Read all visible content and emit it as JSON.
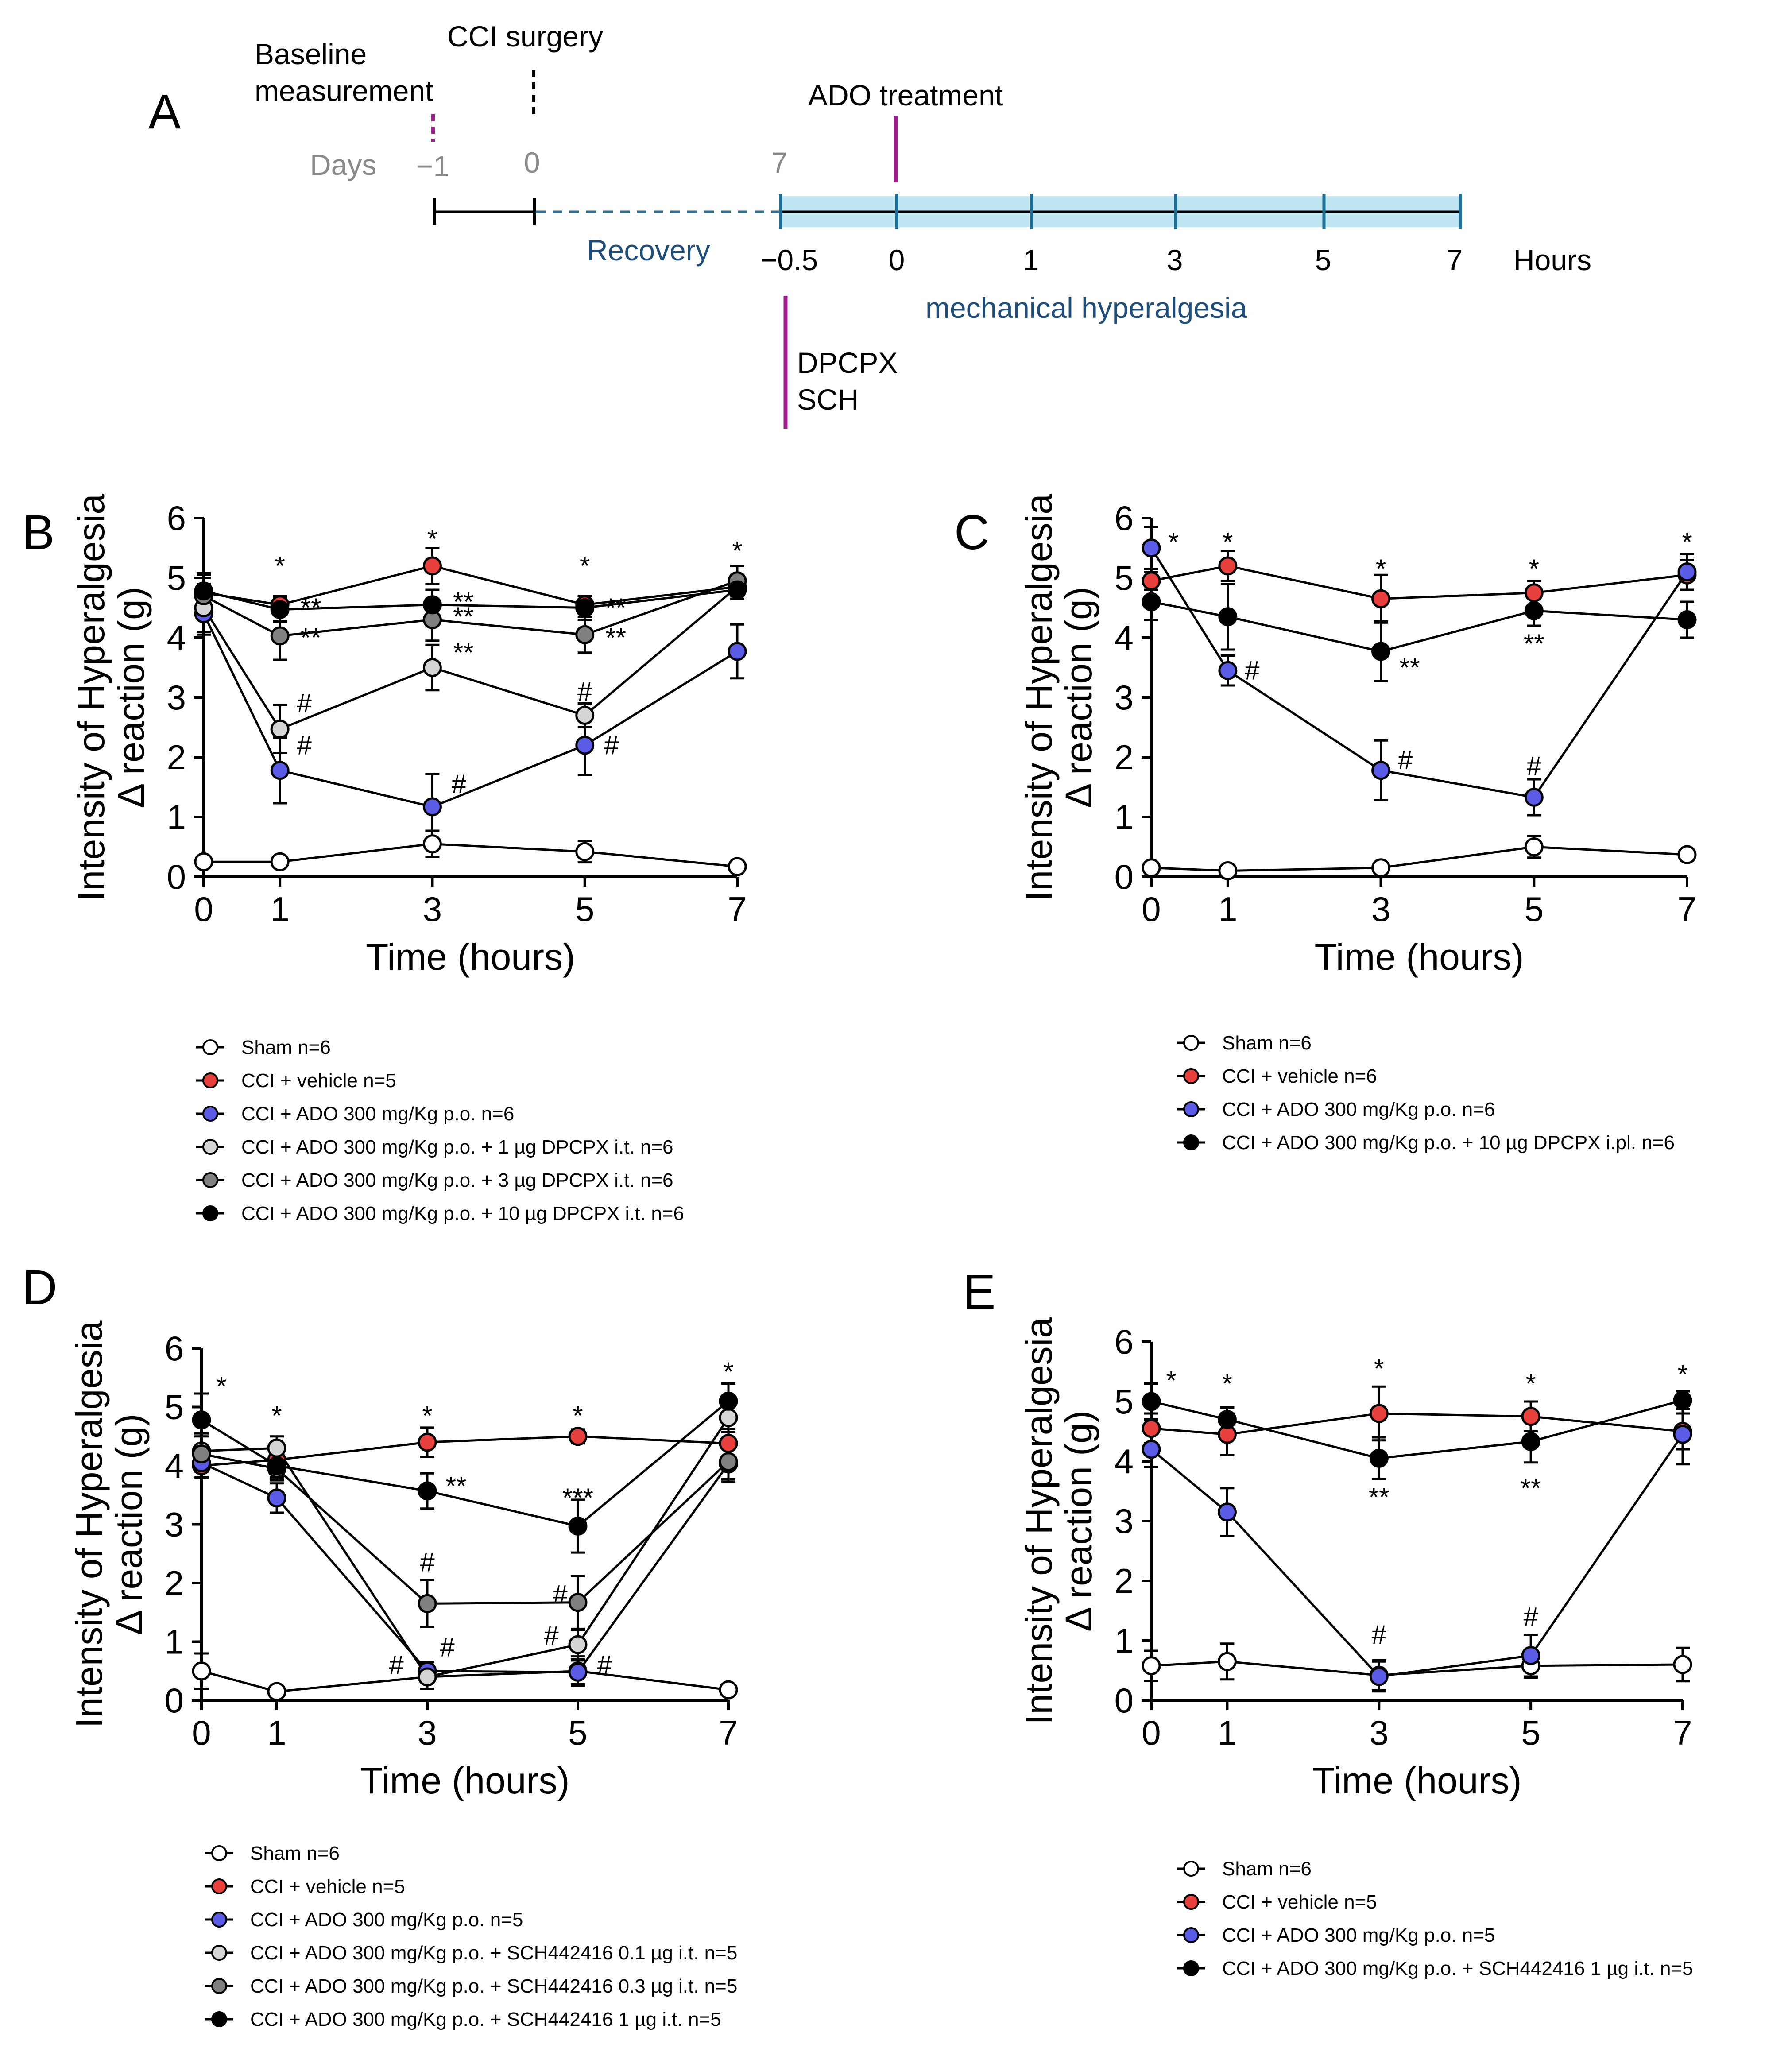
{
  "schematic": {
    "letter": "A",
    "baseline_label_1": "Baseline",
    "baseline_label_2": "measurement",
    "cci_label": "CCI surgery",
    "ado_label": "ADO treatment",
    "days_label": "Days",
    "day_minus1": "−1",
    "day_0": "0",
    "day_7": "7",
    "recovery_label": "Recovery",
    "hours": [
      "−0.5",
      "0",
      "1",
      "3",
      "5",
      "7"
    ],
    "hours_label": "Hours",
    "mech_label": "mechanical hyperalgesia",
    "dpcpx_label": "DPCPX",
    "sch_label": "SCH",
    "colors": {
      "magenta": "#a0208f",
      "blue_text": "#1e4e79",
      "dash_blue": "#2f6f8f",
      "band": "#bfe6f2",
      "grey": "#8a8a8a"
    }
  },
  "chart_data": [
    {
      "panel": "B",
      "type": "line",
      "x": [
        0,
        1,
        3,
        5,
        7
      ],
      "xticks": [
        "0",
        "1",
        "3",
        "5",
        "7"
      ],
      "yticks": [
        "0",
        "1",
        "2",
        "3",
        "4",
        "5",
        "6"
      ],
      "ylim": [
        0,
        6
      ],
      "xlabel": "Time (hours)",
      "ylabel_1": "Intensity of Hyperalgesia",
      "ylabel_2": "Δ reaction (g)",
      "series": [
        {
          "name": "Sham n=6",
          "color": "#ffffff",
          "values": [
            0.25,
            0.25,
            0.55,
            0.42,
            0.17
          ],
          "errors": [
            0.08,
            0.05,
            0.22,
            0.18,
            0.05
          ]
        },
        {
          "name": "CCI + vehicle n=5",
          "color": "#e8403c",
          "values": [
            4.75,
            4.55,
            5.2,
            4.55,
            4.85
          ],
          "errors": [
            0.3,
            0.15,
            0.3,
            0.15,
            0.2
          ]
        },
        {
          "name": "CCI + ADO 300 mg/Kg p.o. n=6",
          "color": "#5b5ce6",
          "values": [
            4.4,
            1.78,
            1.17,
            2.2,
            3.77
          ],
          "errors": [
            0.35,
            0.55,
            0.55,
            0.5,
            0.45
          ]
        },
        {
          "name": "CCI + ADO 300 mg/Kg p.o. + 1 µg DPCPX i.t. n=6",
          "color": "#d5d5d5",
          "values": [
            4.5,
            2.47,
            3.5,
            2.7,
            4.85
          ],
          "errors": [
            0.4,
            0.4,
            0.38,
            0.2,
            0.2
          ]
        },
        {
          "name": "CCI + ADO 300 mg/Kg p.o. + 3 µg DPCPX i.t. n=6",
          "color": "#808080",
          "values": [
            4.7,
            4.03,
            4.3,
            4.05,
            4.95
          ],
          "errors": [
            0.3,
            0.4,
            0.35,
            0.3,
            0.25
          ]
        },
        {
          "name": "CCI + ADO 300 mg/Kg p.o. + 10 µg DPCPX i.t. n=6",
          "color": "#000000",
          "values": [
            4.78,
            4.47,
            4.55,
            4.5,
            4.8
          ],
          "errors": [
            0.3,
            0.2,
            0.25,
            0.2,
            0.15
          ]
        }
      ],
      "annotations": [
        {
          "text": "*",
          "x": 1,
          "y": 5.05,
          "dx": 0
        },
        {
          "text": "*",
          "x": 3,
          "y": 5.5,
          "dx": 0
        },
        {
          "text": "*",
          "x": 5,
          "y": 5.05,
          "dx": 0
        },
        {
          "text": "*",
          "x": 7,
          "y": 5.3,
          "dx": 0
        },
        {
          "text": "**",
          "x": 1,
          "y": 4.35,
          "dx": 70
        },
        {
          "text": "**",
          "x": 1,
          "y": 3.85,
          "dx": 70
        },
        {
          "text": "**",
          "x": 3,
          "y": 4.45,
          "dx": 70
        },
        {
          "text": "**",
          "x": 3,
          "y": 4.2,
          "dx": 70
        },
        {
          "text": "**",
          "x": 3,
          "y": 3.6,
          "dx": 70
        },
        {
          "text": "**",
          "x": 5,
          "y": 4.35,
          "dx": 70
        },
        {
          "text": "**",
          "x": 5,
          "y": 3.85,
          "dx": 70
        },
        {
          "text": "#",
          "x": 1,
          "y": 2.75,
          "dx": 55
        },
        {
          "text": "#",
          "x": 1,
          "y": 2.05,
          "dx": 55
        },
        {
          "text": "#",
          "x": 3,
          "y": 1.4,
          "dx": 60
        },
        {
          "text": "#",
          "x": 5,
          "y": 2.95,
          "dx": 0
        },
        {
          "text": "#",
          "x": 5,
          "y": 2.05,
          "dx": 60
        }
      ]
    },
    {
      "panel": "C",
      "type": "line",
      "x": [
        0,
        1,
        3,
        5,
        7
      ],
      "xticks": [
        "0",
        "1",
        "3",
        "5",
        "7"
      ],
      "yticks": [
        "0",
        "1",
        "2",
        "3",
        "4",
        "5",
        "6"
      ],
      "ylim": [
        0,
        6
      ],
      "xlabel": "Time (hours)",
      "ylabel_1": "Intensity of Hyperalgesia",
      "ylabel_2": "Δ reaction (g)",
      "series": [
        {
          "name": "Sham n=6",
          "color": "#ffffff",
          "values": [
            0.15,
            0.1,
            0.15,
            0.5,
            0.37
          ],
          "errors": [
            0.08,
            0.05,
            0.06,
            0.18,
            0.1
          ]
        },
        {
          "name": "CCI + vehicle n=6",
          "color": "#e8403c",
          "values": [
            4.95,
            5.2,
            4.65,
            4.75,
            5.05
          ],
          "errors": [
            0.15,
            0.25,
            0.4,
            0.2,
            0.25
          ]
        },
        {
          "name": "CCI + ADO 300 mg/Kg p.o. n=6",
          "color": "#5b5ce6",
          "values": [
            5.5,
            3.45,
            1.78,
            1.33,
            5.1
          ],
          "errors": [
            0.35,
            0.25,
            0.5,
            0.3,
            0.3
          ]
        },
        {
          "name": "CCI + ADO 300 mg/Kg p.o. + 10 µg DPCPX i.pl. n=6",
          "color": "#000000",
          "values": [
            4.6,
            4.35,
            3.77,
            4.45,
            4.3
          ],
          "errors": [
            0.3,
            0.55,
            0.5,
            0.25,
            0.3
          ]
        }
      ],
      "annotations": [
        {
          "text": "*",
          "x": 0,
          "y": 5.45,
          "dx": 50
        },
        {
          "text": "*",
          "x": 1,
          "y": 5.45,
          "dx": 0
        },
        {
          "text": "*",
          "x": 3,
          "y": 5.0,
          "dx": 0
        },
        {
          "text": "*",
          "x": 5,
          "y": 5.0,
          "dx": 0
        },
        {
          "text": "*",
          "x": 7,
          "y": 5.45,
          "dx": 0
        },
        {
          "text": "#",
          "x": 1,
          "y": 3.3,
          "dx": 55
        },
        {
          "text": "#",
          "x": 3,
          "y": 1.8,
          "dx": 55
        },
        {
          "text": "#",
          "x": 5,
          "y": 1.7,
          "dx": 0
        },
        {
          "text": "**",
          "x": 3,
          "y": 3.35,
          "dx": 65
        },
        {
          "text": "**",
          "x": 5,
          "y": 3.75,
          "dx": 0
        }
      ]
    },
    {
      "panel": "D",
      "type": "line",
      "x": [
        0,
        1,
        3,
        5,
        7
      ],
      "xticks": [
        "0",
        "1",
        "3",
        "5",
        "7"
      ],
      "yticks": [
        "0",
        "1",
        "2",
        "3",
        "4",
        "5",
        "6"
      ],
      "ylim": [
        0,
        6
      ],
      "xlabel": "Time (hours)",
      "ylabel_1": "Intensity of Hyperalgesia",
      "ylabel_2": "Δ reaction (g)",
      "series": [
        {
          "name": "Sham n=6",
          "color": "#ffffff",
          "values": [
            0.5,
            0.15,
            0.4,
            0.5,
            0.18
          ],
          "errors": [
            0.3,
            0.05,
            0.2,
            0.25,
            0.05
          ]
        },
        {
          "name": "CCI + vehicle n=5",
          "color": "#e8403c",
          "values": [
            4.0,
            4.1,
            4.4,
            4.5,
            4.38
          ],
          "errors": [
            0.2,
            0.2,
            0.25,
            0.12,
            0.25
          ]
        },
        {
          "name": "CCI + ADO 300 mg/Kg p.o. n=5",
          "color": "#5b5ce6",
          "values": [
            4.05,
            3.45,
            0.5,
            0.48,
            4.03
          ],
          "errors": [
            0.25,
            0.25,
            0.15,
            0.2,
            0.3
          ]
        },
        {
          "name": "CCI + ADO 300 mg/Kg p.o. + SCH442416 0.1 µg i.t. n=5",
          "color": "#d5d5d5",
          "values": [
            4.25,
            4.3,
            0.4,
            0.95,
            4.82
          ],
          "errors": [
            0.3,
            0.2,
            0.2,
            0.25,
            0.25
          ]
        },
        {
          "name": "CCI + ADO 300 mg/Kg p.o. + SCH442416 0.3 µg i.t. n=5",
          "color": "#808080",
          "values": [
            4.2,
            3.95,
            1.65,
            1.67,
            4.07
          ],
          "errors": [
            0.3,
            0.2,
            0.4,
            0.45,
            0.3
          ]
        },
        {
          "name": "CCI + ADO 300 mg/Kg p.o. + SCH442416 1 µg i.t. n=5",
          "color": "#000000",
          "values": [
            4.78,
            4.0,
            3.57,
            2.97,
            5.1
          ],
          "errors": [
            0.45,
            0.2,
            0.3,
            0.45,
            0.3
          ]
        }
      ],
      "annotations": [
        {
          "text": "*",
          "x": 0,
          "y": 5.2,
          "dx": 45
        },
        {
          "text": "*",
          "x": 1,
          "y": 4.7,
          "dx": 0
        },
        {
          "text": "*",
          "x": 3,
          "y": 4.7,
          "dx": 0
        },
        {
          "text": "*",
          "x": 5,
          "y": 4.7,
          "dx": 0
        },
        {
          "text": "*",
          "x": 7,
          "y": 5.45,
          "dx": 0
        },
        {
          "text": "**",
          "x": 3,
          "y": 3.5,
          "dx": 65
        },
        {
          "text": "***",
          "x": 5,
          "y": 3.3,
          "dx": 0
        },
        {
          "text": "#",
          "x": 3,
          "y": 2.2,
          "dx": 0
        },
        {
          "text": "#",
          "x": 5,
          "y": 1.65,
          "dx": -40
        },
        {
          "text": "#",
          "x": 3,
          "y": 0.75,
          "dx": 45
        },
        {
          "text": "#",
          "x": 3,
          "y": 0.45,
          "dx": -70
        },
        {
          "text": "#",
          "x": 5,
          "y": 0.95,
          "dx": -60
        },
        {
          "text": "#",
          "x": 5,
          "y": 0.45,
          "dx": 60
        }
      ]
    },
    {
      "panel": "E",
      "type": "line",
      "x": [
        0,
        1,
        3,
        5,
        7
      ],
      "xticks": [
        "0",
        "1",
        "3",
        "5",
        "7"
      ],
      "yticks": [
        "0",
        "1",
        "2",
        "3",
        "4",
        "5",
        "6"
      ],
      "ylim": [
        0,
        6
      ],
      "xlabel": "Time (hours)",
      "ylabel_1": "Intensity of Hyperalgesia",
      "ylabel_2": "Δ reaction (g)",
      "series": [
        {
          "name": "Sham n=6",
          "color": "#ffffff",
          "values": [
            0.58,
            0.65,
            0.42,
            0.58,
            0.6
          ],
          "errors": [
            0.25,
            0.3,
            0.25,
            0.2,
            0.28
          ]
        },
        {
          "name": "CCI + vehicle n=5",
          "color": "#e8403c",
          "values": [
            4.55,
            4.45,
            4.8,
            4.75,
            4.5
          ],
          "errors": [
            0.25,
            0.35,
            0.45,
            0.25,
            0.3
          ]
        },
        {
          "name": "CCI + ADO 300 mg/Kg p.o. n=5",
          "color": "#5b5ce6",
          "values": [
            4.2,
            3.15,
            0.4,
            0.75,
            4.45
          ],
          "errors": [
            0.3,
            0.4,
            0.25,
            0.35,
            0.5
          ]
        },
        {
          "name": "CCI + ADO 300 mg/Kg p.o. + SCH442416 1 µg i.t. n=5",
          "color": "#000000",
          "values": [
            5.0,
            4.7,
            4.05,
            4.33,
            5.02
          ],
          "errors": [
            0.3,
            0.2,
            0.35,
            0.35,
            0.15
          ]
        }
      ],
      "annotations": [
        {
          "text": "*",
          "x": 0,
          "y": 5.2,
          "dx": 45
        },
        {
          "text": "*",
          "x": 1,
          "y": 5.15,
          "dx": 0
        },
        {
          "text": "*",
          "x": 3,
          "y": 5.4,
          "dx": 0
        },
        {
          "text": "*",
          "x": 5,
          "y": 5.15,
          "dx": 0
        },
        {
          "text": "*",
          "x": 7,
          "y": 5.3,
          "dx": 0
        },
        {
          "text": "**",
          "x": 3,
          "y": 3.25,
          "dx": 0
        },
        {
          "text": "**",
          "x": 5,
          "y": 3.4,
          "dx": 0
        },
        {
          "text": "#",
          "x": 3,
          "y": 0.95,
          "dx": 0
        },
        {
          "text": "#",
          "x": 5,
          "y": 1.25,
          "dx": 0
        }
      ]
    }
  ]
}
